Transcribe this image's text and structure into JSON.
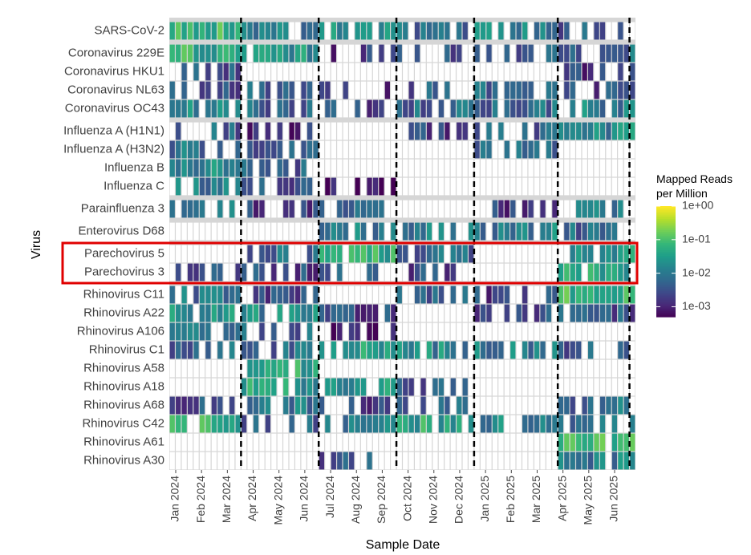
{
  "chart_data": {
    "type": "heatmap",
    "title": "",
    "xlabel": "Sample Date",
    "ylabel": "Virus",
    "x_tick_labels": [
      "Jan 2024",
      "Feb 2024",
      "Mar 2024",
      "Apr 2024",
      "May 2024",
      "Jun 2024",
      "Jul 2024",
      "Aug 2024",
      "Sep 2024",
      "Oct 2024",
      "Nov 2024",
      "Dec 2024",
      "Jan 2025",
      "Feb 2025",
      "Mar 2025",
      "Apr 2025",
      "May 2025",
      "Jun 2025"
    ],
    "n_sample_weeks": 78,
    "viruses": [
      "SARS-CoV-2",
      "Coronavirus 229E",
      "Coronavirus HKU1",
      "Coronavirus NL63",
      "Coronavirus OC43",
      "Influenza A (H1N1)",
      "Influenza A (H3N2)",
      "Influenza B",
      "Influenza C",
      "Parainfluenza 3",
      "Enterovirus D68",
      "Parechovirus 5",
      "Parechovirus 3",
      "Rhinovirus C11",
      "Rhinovirus A22",
      "Rhinovirus A106",
      "Rhinovirus C1",
      "Rhinovirus A58",
      "Rhinovirus A18",
      "Rhinovirus A68",
      "Rhinovirus C42",
      "Rhinovirus A61",
      "Rhinovirus A30"
    ],
    "group_separators_after": [
      "SARS-CoV-2",
      "Coronavirus OC43",
      "Influenza C",
      "Parainfluenza 3",
      "Enterovirus D68",
      "Parechovirus 3"
    ],
    "highlighted_rows": [
      "Parechovirus 5",
      "Parechovirus 3"
    ],
    "highlight_color": "#e00000",
    "dashed_vertical_lines_at_week": [
      12,
      25,
      38,
      51,
      65,
      77
    ],
    "color_scale": {
      "name": "viridis",
      "scale": "log10",
      "min_log10": -3.3,
      "max_log10": 0,
      "stops": [
        "#440154",
        "#482878",
        "#3e4989",
        "#31688e",
        "#26828e",
        "#1f9e89",
        "#35b779",
        "#6ece58",
        "#b5de2b",
        "#fde725"
      ]
    },
    "legend": {
      "title_line1": "Mapped Reads",
      "title_line2": "per Million",
      "ticks": [
        {
          "label": "1e+00",
          "log10": 0
        },
        {
          "label": "1e-01",
          "log10": -1
        },
        {
          "label": "1e-02",
          "log10": -2
        },
        {
          "label": "1e-03",
          "log10": -3
        }
      ],
      "position": "right"
    },
    "activity_log10_reads_per_million": [
      {
        "virus": "SARS-CoV-2",
        "segments": [
          [
            0,
            12,
            -1.2
          ],
          [
            12,
            25,
            -2.0
          ],
          [
            25,
            38,
            -1.7
          ],
          [
            38,
            51,
            -2.2
          ],
          [
            51,
            65,
            -1.8
          ],
          [
            65,
            78,
            -2.4
          ]
        ]
      },
      {
        "virus": "Coronavirus 229E",
        "segments": [
          [
            0,
            12,
            -1.3
          ],
          [
            12,
            25,
            -1.6
          ],
          [
            25,
            38,
            -2.8
          ],
          [
            38,
            51,
            -2.5
          ],
          [
            51,
            65,
            -2.3
          ],
          [
            65,
            78,
            -2.2
          ]
        ]
      },
      {
        "virus": "Coronavirus HKU1",
        "segments": [
          [
            0,
            12,
            -2.4
          ],
          [
            12,
            25,
            -9
          ],
          [
            25,
            38,
            -9
          ],
          [
            38,
            51,
            -9
          ],
          [
            51,
            65,
            -9
          ],
          [
            65,
            78,
            -2.7
          ]
        ]
      },
      {
        "virus": "Coronavirus NL63",
        "segments": [
          [
            0,
            12,
            -2.5
          ],
          [
            12,
            25,
            -2.3
          ],
          [
            25,
            38,
            -2.9
          ],
          [
            38,
            51,
            -2.4
          ],
          [
            51,
            65,
            -2.2
          ],
          [
            65,
            78,
            -2.6
          ]
        ]
      },
      {
        "virus": "Coronavirus OC43",
        "segments": [
          [
            0,
            12,
            -1.8
          ],
          [
            12,
            25,
            -2.3
          ],
          [
            25,
            38,
            -2.6
          ],
          [
            38,
            51,
            -2.2
          ],
          [
            51,
            65,
            -2.2
          ],
          [
            65,
            78,
            -1.9
          ]
        ]
      },
      {
        "virus": "Influenza A (H1N1)",
        "segments": [
          [
            0,
            12,
            -2.3
          ],
          [
            12,
            25,
            -2.9
          ],
          [
            25,
            38,
            -9
          ],
          [
            38,
            51,
            -2.7
          ],
          [
            51,
            65,
            -2.3
          ],
          [
            65,
            78,
            -1.8
          ]
        ]
      },
      {
        "virus": "Influenza A (H3N2)",
        "segments": [
          [
            0,
            12,
            -2.1
          ],
          [
            12,
            25,
            -2.5
          ],
          [
            25,
            38,
            -9
          ],
          [
            38,
            51,
            -9
          ],
          [
            51,
            65,
            -2.2
          ],
          [
            65,
            78,
            -9
          ]
        ]
      },
      {
        "virus": "Influenza B",
        "segments": [
          [
            0,
            12,
            -1.7
          ],
          [
            12,
            25,
            -2.4
          ],
          [
            25,
            38,
            -9
          ],
          [
            38,
            51,
            -9
          ],
          [
            51,
            65,
            -9
          ],
          [
            65,
            78,
            -9
          ]
        ]
      },
      {
        "virus": "Influenza C",
        "segments": [
          [
            0,
            12,
            -2.0
          ],
          [
            12,
            25,
            -2.5
          ],
          [
            25,
            38,
            -3.1
          ],
          [
            38,
            51,
            -9
          ],
          [
            51,
            65,
            -9
          ],
          [
            65,
            78,
            -9
          ]
        ]
      },
      {
        "virus": "Parainfluenza 3",
        "segments": [
          [
            0,
            12,
            -2.0
          ],
          [
            12,
            25,
            -2.6
          ],
          [
            25,
            38,
            -2.0
          ],
          [
            38,
            51,
            -9
          ],
          [
            51,
            65,
            -2.8
          ],
          [
            65,
            78,
            -1.9
          ]
        ]
      },
      {
        "virus": "Enterovirus D68",
        "segments": [
          [
            0,
            12,
            -9
          ],
          [
            12,
            25,
            -9
          ],
          [
            25,
            38,
            -1.9
          ],
          [
            38,
            51,
            -2.0
          ],
          [
            51,
            65,
            -1.9
          ],
          [
            65,
            78,
            -2.2
          ]
        ]
      },
      {
        "virus": "Parechovirus 5",
        "segments": [
          [
            0,
            12,
            -9
          ],
          [
            12,
            25,
            -2.2
          ],
          [
            25,
            38,
            -1.3
          ],
          [
            38,
            51,
            -2.2
          ],
          [
            51,
            65,
            -9
          ],
          [
            65,
            78,
            -1.6
          ]
        ]
      },
      {
        "virus": "Parechovirus 3",
        "segments": [
          [
            0,
            12,
            -2.4
          ],
          [
            12,
            25,
            -2.6
          ],
          [
            25,
            38,
            -2.1
          ],
          [
            38,
            51,
            -2.6
          ],
          [
            51,
            65,
            -9
          ],
          [
            65,
            78,
            -1.5
          ]
        ]
      },
      {
        "virus": "Rhinovirus C11",
        "segments": [
          [
            0,
            12,
            -2.1
          ],
          [
            12,
            25,
            -2.5
          ],
          [
            25,
            38,
            -9
          ],
          [
            38,
            51,
            -2.3
          ],
          [
            51,
            65,
            -2.6
          ],
          [
            65,
            78,
            -1.1
          ]
        ]
      },
      {
        "virus": "Rhinovirus A22",
        "segments": [
          [
            0,
            12,
            -1.6
          ],
          [
            12,
            25,
            -1.8
          ],
          [
            25,
            38,
            -2.6
          ],
          [
            38,
            51,
            -9
          ],
          [
            51,
            65,
            -2.6
          ],
          [
            65,
            78,
            -2.4
          ]
        ]
      },
      {
        "virus": "Rhinovirus A106",
        "segments": [
          [
            0,
            12,
            -2.0
          ],
          [
            12,
            25,
            -2.3
          ],
          [
            25,
            38,
            -3.0
          ],
          [
            38,
            51,
            -9
          ],
          [
            51,
            65,
            -9
          ],
          [
            65,
            78,
            -9
          ]
        ]
      },
      {
        "virus": "Rhinovirus C1",
        "segments": [
          [
            0,
            12,
            -2.2
          ],
          [
            12,
            25,
            -2.2
          ],
          [
            25,
            38,
            -1.5
          ],
          [
            38,
            51,
            -1.8
          ],
          [
            51,
            65,
            -1.9
          ],
          [
            65,
            78,
            -2.3
          ]
        ]
      },
      {
        "virus": "Rhinovirus A58",
        "segments": [
          [
            0,
            12,
            -9
          ],
          [
            12,
            25,
            -1.4
          ],
          [
            25,
            38,
            -9
          ],
          [
            38,
            51,
            -9
          ],
          [
            51,
            65,
            -9
          ],
          [
            65,
            78,
            -9
          ]
        ]
      },
      {
        "virus": "Rhinovirus A18",
        "segments": [
          [
            0,
            12,
            -9
          ],
          [
            12,
            25,
            -1.5
          ],
          [
            25,
            38,
            -1.6
          ],
          [
            38,
            51,
            -2.5
          ],
          [
            51,
            65,
            -9
          ],
          [
            65,
            78,
            -9
          ]
        ]
      },
      {
        "virus": "Rhinovirus A68",
        "segments": [
          [
            0,
            12,
            -2.5
          ],
          [
            12,
            25,
            -2.0
          ],
          [
            25,
            38,
            -2.6
          ],
          [
            38,
            51,
            -2.3
          ],
          [
            51,
            65,
            -9
          ],
          [
            65,
            78,
            -2.1
          ]
        ]
      },
      {
        "virus": "Rhinovirus C42",
        "segments": [
          [
            0,
            12,
            -1.3
          ],
          [
            12,
            25,
            -2.3
          ],
          [
            25,
            38,
            -1.9
          ],
          [
            38,
            51,
            -1.4
          ],
          [
            51,
            65,
            -1.8
          ],
          [
            65,
            78,
            -2.2
          ]
        ]
      },
      {
        "virus": "Rhinovirus A61",
        "segments": [
          [
            0,
            12,
            -9
          ],
          [
            12,
            25,
            -9
          ],
          [
            25,
            38,
            -9
          ],
          [
            38,
            51,
            -9
          ],
          [
            51,
            65,
            -9
          ],
          [
            65,
            78,
            -1.1
          ]
        ]
      },
      {
        "virus": "Rhinovirus A30",
        "segments": [
          [
            0,
            12,
            -9
          ],
          [
            12,
            25,
            -9
          ],
          [
            25,
            38,
            -2.4
          ],
          [
            38,
            51,
            -9
          ],
          [
            51,
            65,
            -9
          ],
          [
            65,
            78,
            -1.9
          ]
        ]
      }
    ]
  }
}
